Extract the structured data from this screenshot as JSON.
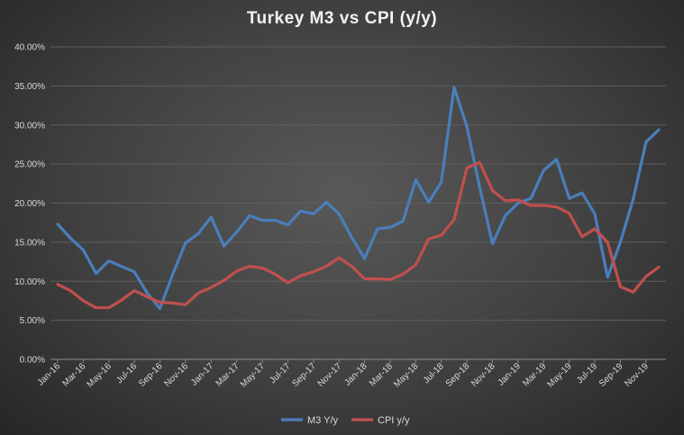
{
  "chart_data": {
    "type": "line",
    "title": "Turkey  M3 vs CPI (y/y)",
    "xlabel": "",
    "ylabel": "",
    "ylim": [
      0,
      40
    ],
    "y_ticks": [
      "0.00%",
      "5.00%",
      "10.00%",
      "15.00%",
      "20.00%",
      "25.00%",
      "30.00%",
      "35.00%",
      "40.00%"
    ],
    "x": [
      "Jan-16",
      "Feb-16",
      "Mar-16",
      "Apr-16",
      "May-16",
      "Jun-16",
      "Jul-16",
      "Aug-16",
      "Sep-16",
      "Oct-16",
      "Nov-16",
      "Dec-16",
      "Jan-17",
      "Feb-17",
      "Mar-17",
      "Apr-17",
      "May-17",
      "Jun-17",
      "Jul-17",
      "Aug-17",
      "Sep-17",
      "Oct-17",
      "Nov-17",
      "Dec-17",
      "Jan-18",
      "Feb-18",
      "Mar-18",
      "Apr-18",
      "May-18",
      "Jun-18",
      "Jul-18",
      "Aug-18",
      "Sep-18",
      "Oct-18",
      "Nov-18",
      "Dec-18",
      "Jan-19",
      "Feb-19",
      "Mar-19",
      "Apr-19",
      "May-19",
      "Jun-19",
      "Jul-19",
      "Aug-19",
      "Sep-19",
      "Oct-19",
      "Nov-19",
      "Dec-19"
    ],
    "x_tick_labels": [
      "Jan-16",
      "Mar-16",
      "May-16",
      "Jul-16",
      "Sep-16",
      "Nov-16",
      "Jan-17",
      "Mar-17",
      "May-17",
      "Jul-17",
      "Sep-17",
      "Nov-17",
      "Jan-18",
      "Mar-18",
      "May-18",
      "Jul-18",
      "Sep-18",
      "Nov-18",
      "Jan-19",
      "Mar-19",
      "May-19",
      "Jul-19",
      "Sep-19",
      "Nov-19"
    ],
    "grid": true,
    "legend_position": "bottom",
    "series": [
      {
        "name": "M3 Y/y",
        "color": "#4a7ebb",
        "values": [
          17.3,
          15.5,
          14.0,
          11.0,
          12.6,
          11.9,
          11.2,
          8.5,
          6.5,
          10.9,
          14.9,
          16.1,
          18.2,
          14.5,
          16.3,
          18.4,
          17.8,
          17.8,
          17.2,
          19.0,
          18.6,
          20.1,
          18.6,
          15.6,
          12.9,
          16.7,
          16.9,
          17.7,
          23.0,
          20.1,
          22.7,
          34.8,
          29.8,
          22.0,
          14.8,
          18.4,
          20.0,
          20.6,
          24.2,
          25.6,
          20.6,
          21.3,
          18.6,
          10.5,
          15.0,
          20.5,
          27.8,
          29.4
        ]
      },
      {
        "name": "CPI y/y",
        "color": "#c0504d",
        "values": [
          9.6,
          8.8,
          7.5,
          6.6,
          6.6,
          7.6,
          8.8,
          8.0,
          7.3,
          7.2,
          7.0,
          8.5,
          9.2,
          10.1,
          11.3,
          11.9,
          11.7,
          10.9,
          9.8,
          10.7,
          11.2,
          11.9,
          13.0,
          11.9,
          10.3,
          10.3,
          10.2,
          10.9,
          12.1,
          15.4,
          15.9,
          17.9,
          24.5,
          25.2,
          21.6,
          20.3,
          20.4,
          19.7,
          19.7,
          19.5,
          18.7,
          15.7,
          16.7,
          15.0,
          9.3,
          8.6,
          10.6,
          11.8
        ]
      }
    ]
  }
}
